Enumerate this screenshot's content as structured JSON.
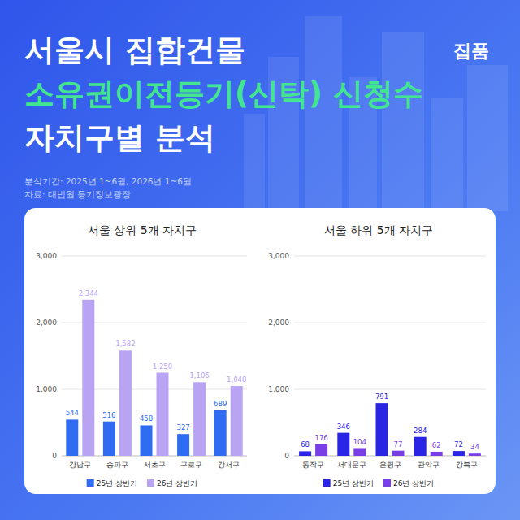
{
  "header": {
    "title_lines": [
      "서울시 집합건물",
      "소유권이전등기(신탁) 신청수",
      "자치구별 분석"
    ],
    "logo": "집품",
    "period": "분석기간: 2025년 1~6월, 2026년 1~6월",
    "source": "자료: 대법원 등기정보광장"
  },
  "chart_data": [
    {
      "type": "bar",
      "title": "서울 상위 5개 자치구",
      "categories": [
        "강남구",
        "송파구",
        "서초구",
        "구로구",
        "강서구"
      ],
      "series": [
        {
          "name": "25년 상반기",
          "color": "#2f6cf2",
          "values": [
            544,
            516,
            458,
            327,
            689
          ]
        },
        {
          "name": "26년 상반기",
          "color": "#b9a4f4",
          "values": [
            2344,
            1582,
            1250,
            1106,
            1048
          ],
          "value_labels": [
            "2,344",
            "1,582",
            "1,250",
            "1,106",
            "1,048"
          ]
        }
      ],
      "ylim": [
        0,
        3000
      ],
      "yticks": [
        0,
        {
          "value": 1000,
          "label": "1,000"
        },
        {
          "value": 2000,
          "label": "2,000"
        },
        {
          "value": 3000,
          "label": "3,000"
        }
      ],
      "grid": true,
      "legend": "bottom",
      "data_labels": true
    },
    {
      "type": "bar",
      "title": "서울 하위 5개 자치구",
      "categories": [
        "동작구",
        "서대문구",
        "은평구",
        "관악구",
        "강북구"
      ],
      "series": [
        {
          "name": "25년 상반기",
          "color": "#2a24e4",
          "values": [
            68,
            346,
            791,
            284,
            72
          ]
        },
        {
          "name": "26년 상반기",
          "color": "#7a3ee6",
          "values": [
            176,
            104,
            77,
            62,
            34
          ]
        }
      ],
      "ylim": [
        0,
        3000
      ],
      "yticks": [
        0,
        {
          "value": 1000,
          "label": "1,000"
        },
        {
          "value": 2000,
          "label": "2,000"
        },
        {
          "value": 3000,
          "label": "3,000"
        }
      ],
      "grid": true,
      "legend": "bottom",
      "data_labels": true
    }
  ]
}
